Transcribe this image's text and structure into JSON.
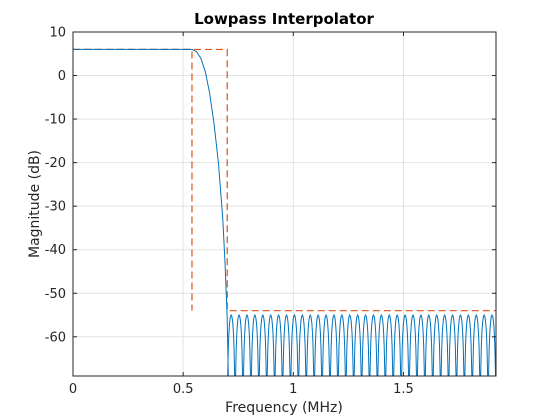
{
  "chart_data": {
    "type": "line",
    "title": "Lowpass Interpolator",
    "xlabel": "Frequency (MHz)",
    "ylabel": "Magnitude (dB)",
    "xlim": [
      0,
      1.92
    ],
    "ylim": [
      -69,
      10
    ],
    "grid": true,
    "x_ticks": [
      0,
      0.5,
      1,
      1.5
    ],
    "x_tick_labels": [
      "0",
      "0.5",
      "1",
      "1.5"
    ],
    "y_ticks": [
      10,
      0,
      -10,
      -20,
      -30,
      -40,
      -50,
      -60
    ],
    "y_tick_labels": [
      "10",
      "0",
      "-10",
      "-20",
      "-30",
      "-40",
      "-50",
      "-60"
    ],
    "series": [
      {
        "role": "magnitude-response",
        "color": "#0072BD",
        "style": "solid",
        "passband_level_db": 6,
        "passband_edge_mhz": 0.54,
        "transition": [
          [
            0,
            6
          ],
          [
            0.54,
            6
          ],
          [
            0.56,
            5.5
          ],
          [
            0.58,
            4
          ],
          [
            0.6,
            1
          ],
          [
            0.62,
            -4
          ],
          [
            0.64,
            -11
          ],
          [
            0.66,
            -20
          ],
          [
            0.68,
            -33
          ],
          [
            0.69,
            -43
          ],
          [
            0.7,
            -56
          ],
          [
            0.705,
            -69
          ]
        ],
        "stopband_start_mhz": 0.7,
        "stopband_peak_db": -55,
        "stopband_lobe_count": 34
      },
      {
        "role": "specification-mask",
        "color": "#D95319",
        "style": "dashed",
        "upper": [
          [
            0,
            6
          ],
          [
            0.7,
            6
          ],
          [
            0.7,
            -54
          ],
          [
            1.92,
            -54
          ]
        ],
        "lower": [
          [
            0,
            6
          ],
          [
            0.54,
            6
          ],
          [
            0.54,
            -54
          ]
        ]
      }
    ]
  }
}
